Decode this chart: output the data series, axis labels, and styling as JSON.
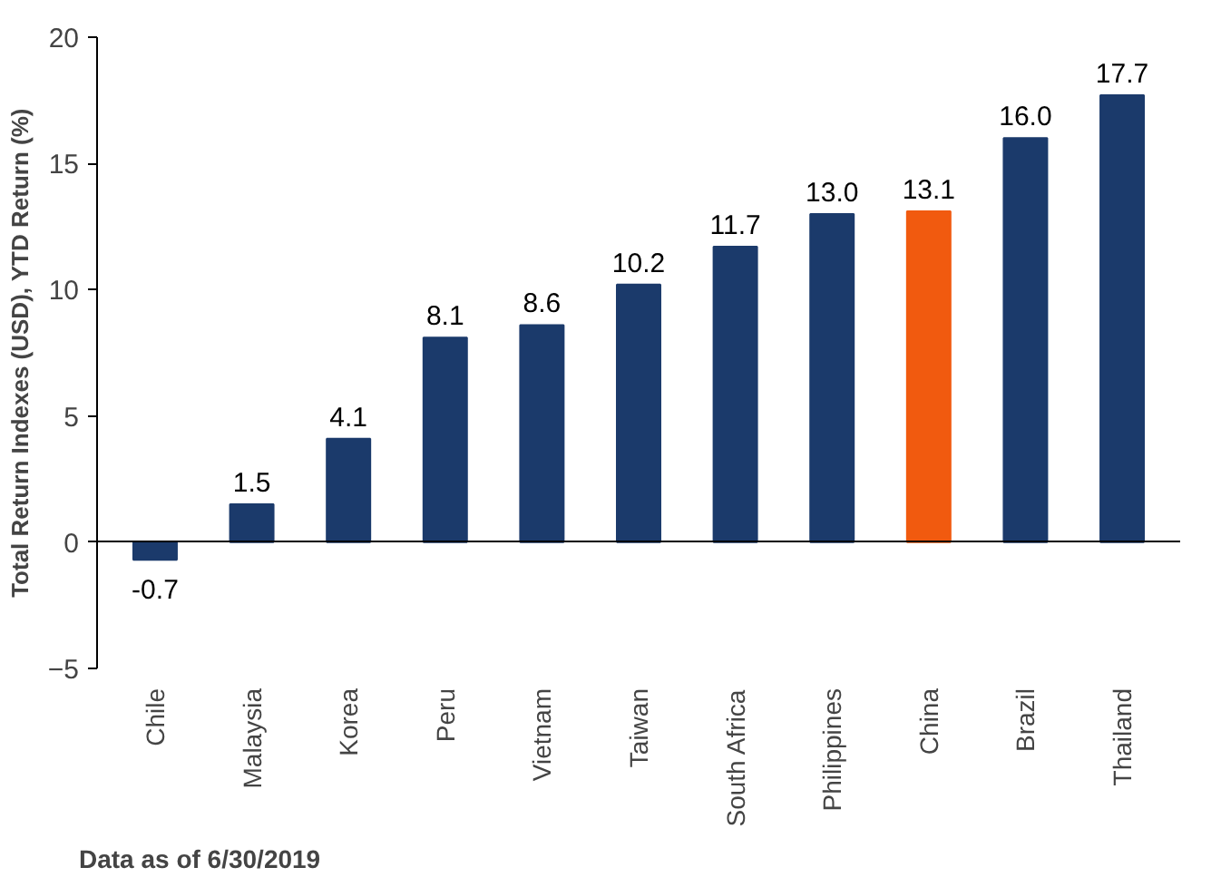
{
  "chart_data": {
    "type": "bar",
    "ylabel": "Total Return Indexes (USD), YTD Return (%)",
    "categories": [
      "Chile",
      "Malaysia",
      "Korea",
      "Peru",
      "Vietnam",
      "Taiwan",
      "South Africa",
      "Philippines",
      "China",
      "Brazil",
      "Thailand"
    ],
    "values": [
      -0.7,
      1.5,
      4.1,
      8.1,
      8.6,
      10.2,
      11.7,
      13.0,
      13.1,
      16.0,
      17.7
    ],
    "value_labels": [
      "-0.7",
      "1.5",
      "4.1",
      "8.1",
      "8.6",
      "10.2",
      "11.7",
      "13.0",
      "13.1",
      "16.0",
      "17.7"
    ],
    "colors": [
      "#1b3a6b",
      "#1b3a6b",
      "#1b3a6b",
      "#1b3a6b",
      "#1b3a6b",
      "#1b3a6b",
      "#1b3a6b",
      "#1b3a6b",
      "#f15a0f",
      "#1b3a6b",
      "#1b3a6b"
    ],
    "ylim": [
      -5,
      20
    ],
    "yticks": [
      -5,
      0,
      5,
      10,
      15,
      20
    ],
    "annotations": [
      "Data as of 6/30/2019"
    ]
  }
}
